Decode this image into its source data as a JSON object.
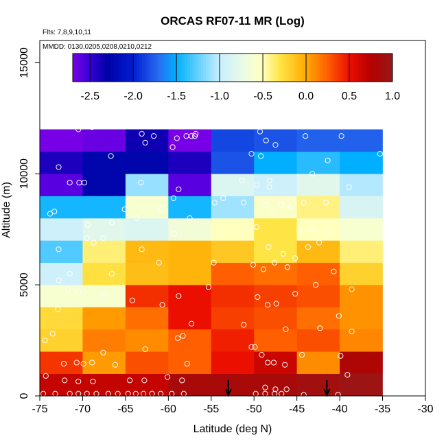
{
  "chart_data": {
    "type": "heatmap",
    "title": "ORCAS RF07-11 MR (Log)",
    "flights_note": "Flts: 7,8,9,10,11",
    "dates_note": "MMDD: 0130,0205,0208,0210,0212",
    "xlabel": "Latitude (deg N)",
    "ylabel": "Altitude (m)",
    "xlim": [
      -75,
      -30
    ],
    "ylim": [
      0,
      16000
    ],
    "x_ticks": [
      -75,
      -70,
      -65,
      -60,
      -55,
      -50,
      -45,
      -40,
      -35,
      -30
    ],
    "x_tick_labels": [
      "-75",
      "-70",
      "-65",
      "-60",
      "-55",
      "-50",
      "-45",
      "-40",
      "-35",
      "-30"
    ],
    "y_ticks": [
      0,
      5000,
      10000,
      15000
    ],
    "y_tick_labels": [
      "0",
      "5000",
      "10000",
      "15000"
    ],
    "colorbar": {
      "range": [
        -2.7,
        1.0
      ],
      "ticks": [
        -2.5,
        -2.0,
        -1.5,
        -1.0,
        -0.5,
        0.0,
        0.5,
        1.0
      ],
      "tick_labels": [
        "-2.5",
        "-2.0",
        "-1.5",
        "-1.0",
        "-0.5",
        "0.0",
        "0.5",
        "1.0"
      ]
    },
    "lat_bin_edges": [
      -75,
      -70,
      -65,
      -60,
      -55,
      -50,
      -45,
      -40,
      -35
    ],
    "alt_bin_edges": [
      0,
      1000,
      2000,
      3000,
      4000,
      5000,
      6000,
      7000,
      8000,
      9000,
      10000,
      11000,
      12000
    ],
    "cells": [
      [
        0.68,
        0.68,
        0.68,
        0.85,
        0.85,
        0.85,
        0.9,
        0.95
      ],
      [
        0.38,
        0.05,
        0.3,
        0.25,
        0.5,
        0.65,
        0.1,
        0.8
      ],
      [
        -0.2,
        0.15,
        0.1,
        0.25,
        0.45,
        0.25,
        0.3,
        0.12
      ],
      [
        -0.25,
        0.05,
        0.2,
        0.5,
        0.35,
        0.3,
        0.2,
        0.08
      ],
      [
        -0.6,
        -0.6,
        0.4,
        0.5,
        0.4,
        0.35,
        0.3,
        0.08
      ],
      [
        -0.95,
        -0.28,
        -0.1,
        -0.05,
        0.25,
        0.2,
        0.25,
        -0.2
      ],
      [
        -1.3,
        -0.38,
        -0.08,
        -0.05,
        -0.15,
        -0.3,
        -0.08,
        -0.38
      ],
      [
        -0.95,
        -0.8,
        -0.85,
        -0.65,
        -0.5,
        -0.3,
        -0.5,
        -0.6
      ],
      [
        -1.45,
        -1.45,
        -0.6,
        -1.45,
        -1.1,
        -0.55,
        -0.4,
        -0.88
      ],
      [
        -2.6,
        -2.25,
        -1.12,
        -2.6,
        -0.85,
        -0.95,
        -0.8,
        -1.05
      ],
      [
        -2.4,
        -2.25,
        -2.25,
        -2.4,
        -1.8,
        -1.5,
        -1.4,
        -1.5
      ],
      [
        -2.9,
        -2.65,
        -2.35,
        -2.8,
        -1.85,
        -1.8,
        -1.75,
        -1.75
      ]
    ],
    "sample_points": [
      [
        -74.6,
        100
      ],
      [
        -73.2,
        100
      ],
      [
        -71.5,
        100
      ],
      [
        -70.5,
        100
      ],
      [
        -69.5,
        100
      ],
      [
        -68.4,
        100
      ],
      [
        -67,
        100
      ],
      [
        -65.9,
        100
      ],
      [
        -64.7,
        100
      ],
      [
        -63.8,
        100
      ],
      [
        -62.9,
        100
      ],
      [
        -61.9,
        100
      ],
      [
        -60.9,
        100
      ],
      [
        -59.6,
        100
      ],
      [
        -58.2,
        100
      ],
      [
        -49.8,
        100
      ],
      [
        -48.7,
        100
      ],
      [
        -47.6,
        100
      ],
      [
        -46.8,
        100
      ],
      [
        -44.2,
        50
      ],
      [
        -40.2,
        50
      ],
      [
        -74.3,
        900
      ],
      [
        -72.1,
        700
      ],
      [
        -70.5,
        650
      ],
      [
        -68.8,
        650
      ],
      [
        -64.5,
        700
      ],
      [
        -62.8,
        700
      ],
      [
        -60.1,
        850
      ],
      [
        -58.4,
        700
      ],
      [
        -48.7,
        380
      ],
      [
        -47.5,
        300
      ],
      [
        -46.2,
        300
      ],
      [
        -39.1,
        950
      ],
      [
        -74.4,
        2500
      ],
      [
        -73.5,
        2800
      ],
      [
        -72.2,
        1450
      ],
      [
        -70.7,
        1500
      ],
      [
        -69.9,
        1450
      ],
      [
        -68.9,
        1500
      ],
      [
        -67.6,
        1950
      ],
      [
        -66.2,
        1400
      ],
      [
        -62.7,
        2100
      ],
      [
        -58.9,
        2600
      ],
      [
        -58.3,
        2700
      ],
      [
        -57.3,
        3250
      ],
      [
        -57.8,
        1450
      ],
      [
        -51.2,
        3200
      ],
      [
        -50.3,
        2200
      ],
      [
        -49.9,
        2200
      ],
      [
        -49.1,
        1850
      ],
      [
        -48.4,
        1500
      ],
      [
        -47.7,
        1500
      ],
      [
        -46.4,
        1400
      ],
      [
        -44.4,
        1850
      ],
      [
        -39.9,
        1800
      ],
      [
        -38.6,
        2900
      ],
      [
        -40.1,
        3600
      ],
      [
        -42.3,
        3050
      ],
      [
        -46.3,
        3000
      ],
      [
        -72.9,
        3900
      ],
      [
        -71.7,
        4800
      ],
      [
        -70.5,
        4700
      ],
      [
        -67.5,
        4600
      ],
      [
        -64.2,
        4300
      ],
      [
        -60.7,
        4100
      ],
      [
        -58.8,
        4500
      ],
      [
        -55.3,
        4900
      ],
      [
        -49.6,
        4450
      ],
      [
        -48.4,
        4100
      ],
      [
        -47.4,
        4150
      ],
      [
        -45.2,
        4600
      ],
      [
        -40.7,
        5600
      ],
      [
        -38.6,
        4800
      ],
      [
        -72.8,
        5200
      ],
      [
        -71.5,
        5500
      ],
      [
        -66.6,
        5500
      ],
      [
        -61.1,
        6000
      ],
      [
        -54.7,
        6000
      ],
      [
        -50.1,
        5900
      ],
      [
        -48.9,
        5700
      ],
      [
        -47.6,
        6000
      ],
      [
        -46.1,
        5800
      ],
      [
        -42.8,
        5000
      ],
      [
        -42.4,
        6900
      ],
      [
        -43.7,
        6700
      ],
      [
        -72.8,
        6600
      ],
      [
        -69.5,
        7100
      ],
      [
        -68.7,
        6900
      ],
      [
        -67.6,
        7100
      ],
      [
        -63.1,
        6600
      ],
      [
        -59.3,
        7300
      ],
      [
        -53.8,
        7400
      ],
      [
        -49.7,
        7600
      ],
      [
        -48.3,
        6700
      ],
      [
        -46.6,
        6400
      ],
      [
        -45.2,
        6200
      ],
      [
        -44.7,
        7400
      ],
      [
        -43.2,
        7500
      ],
      [
        -41.2,
        7400
      ],
      [
        -73.8,
        8200
      ],
      [
        -73.3,
        8300
      ],
      [
        -69.4,
        7700
      ],
      [
        -66.6,
        7800
      ],
      [
        -65.1,
        8400
      ],
      [
        -63.7,
        8000
      ],
      [
        -60.9,
        8400
      ],
      [
        -59.4,
        8900
      ],
      [
        -57.5,
        8000
      ],
      [
        -54.6,
        8700
      ],
      [
        -53.6,
        8900
      ],
      [
        -51.2,
        8700
      ],
      [
        -48.6,
        8600
      ],
      [
        -47.9,
        8300
      ],
      [
        -46.8,
        8600
      ],
      [
        -45.7,
        8500
      ],
      [
        -44.2,
        8700
      ],
      [
        -41.6,
        8700
      ],
      [
        -71.5,
        9600
      ],
      [
        -70.4,
        9600
      ],
      [
        -69.8,
        9600
      ],
      [
        -63.2,
        9600
      ],
      [
        -58.8,
        9300
      ],
      [
        -51.4,
        9700
      ],
      [
        -49.7,
        9500
      ],
      [
        -48.2,
        9400
      ],
      [
        -48.2,
        9700
      ],
      [
        -43.2,
        10000
      ],
      [
        -41.4,
        10600
      ],
      [
        -38.9,
        9400
      ],
      [
        -72.8,
        10300
      ],
      [
        -66.7,
        10800
      ],
      [
        -59.5,
        11200
      ],
      [
        -57.9,
        11700
      ],
      [
        -50.3,
        10900
      ],
      [
        -49.2,
        10800
      ],
      [
        -47.5,
        11300
      ],
      [
        -44,
        11700
      ],
      [
        -39.8,
        11700
      ],
      [
        -73.7,
        12200
      ],
      [
        -68.9,
        12100
      ],
      [
        -70.5,
        12000
      ],
      [
        -67.3,
        12200
      ],
      [
        -64.4,
        12200
      ],
      [
        -63.1,
        11800
      ],
      [
        -61.7,
        11700
      ],
      [
        -62.7,
        11400
      ],
      [
        -59,
        11600
      ],
      [
        -57.3,
        11700
      ],
      [
        -56.9,
        11700
      ],
      [
        -56.8,
        11800
      ],
      [
        -49.3,
        11900
      ],
      [
        -48.6,
        11500
      ],
      [
        -35.3,
        10900
      ]
    ],
    "arrows": [
      -53,
      -41.5
    ]
  }
}
